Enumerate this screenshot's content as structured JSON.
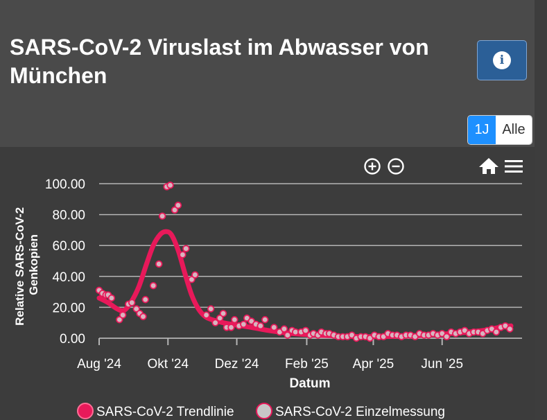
{
  "header": {
    "title": "SARS-CoV-2 Viruslast im Abwasser von München",
    "info_icon_glyph": "i"
  },
  "range_toggle": {
    "option_1y": "1J",
    "option_all": "Alle",
    "active": "1J"
  },
  "colors": {
    "trend": "#e8195a",
    "point_fill": "#d8b4bf",
    "point_stroke": "#e8195a",
    "grid": "#b5b5b5",
    "text": "#ffffff",
    "active_toggle": "#1e90ff"
  },
  "chart_data": {
    "type": "line",
    "title": "",
    "xlabel": "Datum",
    "ylabel": "Relative SARS-CoV-2 Genkopien",
    "ylim": [
      0,
      100
    ],
    "yticks": [
      "0.00",
      "20.00",
      "40.00",
      "60.00",
      "80.00",
      "100.00"
    ],
    "x_unit": "days since 2024-08-01",
    "xlim": [
      0,
      365
    ],
    "xticks": [
      {
        "label": "Aug '24",
        "day": 0
      },
      {
        "label": "Okt '24",
        "day": 61
      },
      {
        "label": "Dez '24",
        "day": 122
      },
      {
        "label": "Feb '25",
        "day": 184
      },
      {
        "label": "Apr '25",
        "day": 243
      },
      {
        "label": "Jun '25",
        "day": 304
      }
    ],
    "legend": [
      "SARS-CoV-2 Trendlinie",
      "SARS-CoV-2 Einzelmessung"
    ],
    "series": [
      {
        "name": "SARS-CoV-2 Trendlinie",
        "points": [
          [
            0,
            26
          ],
          [
            8,
            23
          ],
          [
            16,
            19
          ],
          [
            22,
            18
          ],
          [
            28,
            23
          ],
          [
            35,
            33
          ],
          [
            42,
            48
          ],
          [
            48,
            60
          ],
          [
            54,
            67
          ],
          [
            59,
            69
          ],
          [
            64,
            67
          ],
          [
            70,
            57
          ],
          [
            76,
            42
          ],
          [
            82,
            28
          ],
          [
            88,
            19
          ],
          [
            94,
            14
          ],
          [
            100,
            12
          ],
          [
            110,
            10
          ],
          [
            122,
            8.5
          ],
          [
            135,
            7
          ],
          [
            150,
            5
          ],
          [
            165,
            3.5
          ],
          [
            180,
            2.5
          ],
          [
            200,
            1.8
          ],
          [
            220,
            1.2
          ],
          [
            240,
            1
          ],
          [
            260,
            1.2
          ],
          [
            280,
            1.6
          ],
          [
            300,
            2.5
          ],
          [
            320,
            3.5
          ],
          [
            340,
            5
          ],
          [
            355,
            7
          ],
          [
            365,
            8
          ]
        ]
      },
      {
        "name": "SARS-CoV-2 Einzelmessung",
        "points": [
          [
            0,
            31
          ],
          [
            3,
            29
          ],
          [
            6,
            28
          ],
          [
            8,
            28
          ],
          [
            11,
            26
          ],
          [
            18,
            12
          ],
          [
            21,
            15
          ],
          [
            26,
            22
          ],
          [
            29,
            23
          ],
          [
            33,
            19
          ],
          [
            36,
            16
          ],
          [
            39,
            14
          ],
          [
            41,
            25
          ],
          [
            48,
            34
          ],
          [
            53,
            48
          ],
          [
            56,
            79
          ],
          [
            60,
            98
          ],
          [
            63,
            99
          ],
          [
            67,
            83
          ],
          [
            70,
            86
          ],
          [
            74,
            54
          ],
          [
            77,
            58
          ],
          [
            82,
            38
          ],
          [
            85,
            41
          ],
          [
            95,
            15
          ],
          [
            99,
            19
          ],
          [
            103,
            10
          ],
          [
            107,
            13
          ],
          [
            110,
            16
          ],
          [
            113,
            7
          ],
          [
            117,
            7
          ],
          [
            120,
            12
          ],
          [
            124,
            8
          ],
          [
            128,
            9
          ],
          [
            131,
            13
          ],
          [
            135,
            11
          ],
          [
            139,
            9
          ],
          [
            143,
            8
          ],
          [
            147,
            12
          ],
          [
            155,
            7
          ],
          [
            160,
            4
          ],
          [
            164,
            6
          ],
          [
            167,
            2
          ],
          [
            171,
            5
          ],
          [
            174,
            4
          ],
          [
            179,
            4
          ],
          [
            183,
            5
          ],
          [
            187,
            2
          ],
          [
            190,
            3
          ],
          [
            194,
            2
          ],
          [
            197,
            4
          ],
          [
            201,
            3
          ],
          [
            204,
            3
          ],
          [
            208,
            2
          ],
          [
            212,
            1
          ],
          [
            216,
            1
          ],
          [
            220,
            1
          ],
          [
            224,
            2
          ],
          [
            228,
            0
          ],
          [
            232,
            1
          ],
          [
            236,
            1
          ],
          [
            240,
            0
          ],
          [
            244,
            2
          ],
          [
            248,
            1
          ],
          [
            252,
            1
          ],
          [
            256,
            3
          ],
          [
            260,
            2
          ],
          [
            264,
            2
          ],
          [
            268,
            1
          ],
          [
            272,
            2
          ],
          [
            276,
            2
          ],
          [
            280,
            1
          ],
          [
            284,
            3
          ],
          [
            288,
            2
          ],
          [
            292,
            2
          ],
          [
            296,
            3
          ],
          [
            300,
            2
          ],
          [
            304,
            3
          ],
          [
            308,
            1
          ],
          [
            312,
            4
          ],
          [
            316,
            3
          ],
          [
            320,
            4
          ],
          [
            324,
            5
          ],
          [
            328,
            3
          ],
          [
            332,
            4
          ],
          [
            336,
            4
          ],
          [
            340,
            3
          ],
          [
            344,
            5
          ],
          [
            348,
            6
          ],
          [
            352,
            4
          ],
          [
            356,
            7
          ],
          [
            360,
            8
          ],
          [
            364,
            6
          ]
        ]
      }
    ]
  }
}
